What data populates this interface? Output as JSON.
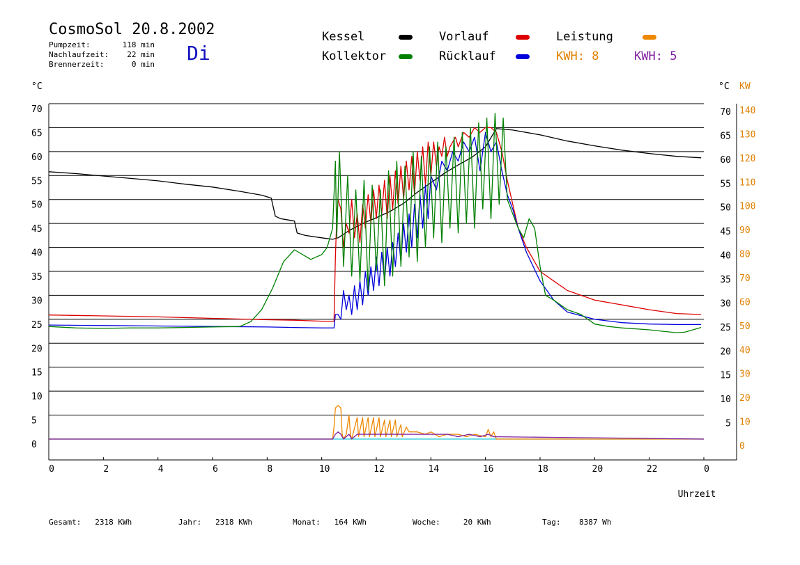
{
  "header": {
    "title": "CosmoSol 20.8.2002",
    "day": "Di",
    "info": [
      {
        "label": "Pumpzeit:",
        "value": "118 min"
      },
      {
        "label": "Nachlaufzeit:",
        "value": "22 min"
      },
      {
        "label": "Brennerzeit:",
        "value": "0 min"
      }
    ]
  },
  "legend": {
    "items": [
      {
        "label": "Kessel",
        "color": "#000000"
      },
      {
        "label": "Vorlauf",
        "color": "#dd0000"
      },
      {
        "label": "Leistung",
        "color": "#ee8800"
      },
      {
        "label": "Kollektor",
        "color": "#008000"
      },
      {
        "label": "Rücklauf",
        "color": "#0000dd"
      }
    ],
    "kwh1_label": "KWH:",
    "kwh1_value": "8",
    "kwh1_color": "#e08000",
    "kwh2_label": "KWH:",
    "kwh2_value": "5",
    "kwh2_color": "#8020a0"
  },
  "footer": [
    {
      "label": "Gesamt:",
      "value": "2318 KWh"
    },
    {
      "label": "Jahr:",
      "value": "2318 KWh"
    },
    {
      "label": "Monat:",
      "value": "164 KWh"
    },
    {
      "label": "Woche:",
      "value": "20 KWh"
    },
    {
      "label": "Tag:",
      "value": "8387 Wh"
    }
  ],
  "chart_data": {
    "type": "line",
    "xlabel": "Uhrzeit",
    "ylabel_left": "°C",
    "ylabel_right": "°C",
    "ylabel_right2": "KW",
    "x_ticks": [
      "0",
      "2",
      "4",
      "6",
      "8",
      "10",
      "12",
      "14",
      "16",
      "18",
      "20",
      "22",
      "0"
    ],
    "xlim": [
      0,
      24
    ],
    "ylim": [
      0,
      70
    ],
    "y_ticks_left": [
      "0",
      "5",
      "10",
      "15",
      "20",
      "25",
      "30",
      "35",
      "40",
      "45",
      "50",
      "55",
      "60",
      "65",
      "70"
    ],
    "y_ticks_right": [
      "5",
      "10",
      "15",
      "20",
      "25",
      "30",
      "35",
      "40",
      "45",
      "50",
      "55",
      "60",
      "65",
      "70"
    ],
    "y_ticks_kw": [
      "0",
      "10",
      "20",
      "30",
      "40",
      "50",
      "60",
      "70",
      "80",
      "90",
      "100",
      "110",
      "120",
      "130",
      "140"
    ],
    "grid": true,
    "series": [
      {
        "name": "Kessel",
        "color": "#000000",
        "x": [
          0,
          1,
          2,
          3,
          4,
          5,
          6,
          7,
          7.8,
          8.15,
          8.3,
          8.5,
          9,
          9.1,
          9.4,
          10,
          10.4,
          10.6,
          11,
          11.5,
          12,
          12.5,
          13,
          13.5,
          14,
          14.5,
          15,
          15.5,
          16,
          16.4,
          17,
          18,
          19,
          20,
          21,
          22,
          23,
          23.9
        ],
        "y": [
          55.8,
          55.4,
          54.9,
          54.4,
          53.9,
          53.2,
          52.6,
          51.7,
          50.9,
          50.3,
          46.5,
          46,
          45.5,
          43,
          42.5,
          42,
          41.7,
          42,
          43.5,
          45,
          46.2,
          47.5,
          49.2,
          51.5,
          53.5,
          55.5,
          57.2,
          58.8,
          61,
          64.8,
          64.5,
          63.5,
          62.2,
          61.2,
          60.3,
          59.6,
          59,
          58.7
        ]
      },
      {
        "name": "Vorlauf",
        "color": "#dd0000",
        "x": [
          0,
          2,
          4,
          6,
          8,
          9,
          10,
          10.45,
          10.5,
          10.55,
          10.6,
          10.7,
          10.8,
          10.9,
          11,
          11.1,
          11.2,
          11.3,
          11.4,
          11.5,
          11.6,
          11.7,
          11.8,
          11.9,
          12,
          12.1,
          12.2,
          12.3,
          12.4,
          12.5,
          12.6,
          12.7,
          12.8,
          12.9,
          13,
          13.1,
          13.2,
          13.3,
          13.4,
          13.5,
          13.6,
          13.7,
          13.8,
          13.9,
          14,
          14.1,
          14.2,
          14.3,
          14.4,
          14.5,
          14.6,
          14.7,
          14.8,
          14.9,
          15,
          15.2,
          15.4,
          15.6,
          15.8,
          16,
          16.2,
          16.4,
          16.6,
          16.8,
          17,
          17.2,
          17.5,
          18,
          18.5,
          19,
          20,
          21,
          22,
          23,
          23.9
        ],
        "y": [
          25.9,
          25.7,
          25.5,
          25.2,
          24.9,
          24.8,
          24.6,
          24.6,
          38,
          46,
          50,
          48,
          40,
          45,
          43,
          50,
          42,
          47,
          41,
          49,
          44,
          51,
          45,
          52,
          46,
          53,
          47,
          54,
          46,
          55,
          48,
          56,
          49,
          57,
          50,
          58,
          52,
          59,
          51,
          60,
          54,
          61,
          53,
          62,
          55,
          62,
          57,
          61,
          59,
          63,
          59,
          61,
          62,
          63,
          61,
          64,
          63,
          65,
          64,
          65,
          65,
          64,
          60,
          54,
          49,
          44,
          40,
          35,
          33,
          31,
          29,
          28,
          27,
          26.2,
          26
        ]
      },
      {
        "name": "Rücklauf",
        "color": "#0000dd",
        "x": [
          0,
          2,
          4,
          6,
          8,
          9,
          10,
          10.45,
          10.5,
          10.6,
          10.7,
          10.8,
          10.9,
          11,
          11.1,
          11.2,
          11.3,
          11.4,
          11.5,
          11.6,
          11.7,
          11.8,
          11.9,
          12,
          12.1,
          12.2,
          12.3,
          12.4,
          12.5,
          12.6,
          12.7,
          12.8,
          12.9,
          13,
          13.1,
          13.2,
          13.3,
          13.4,
          13.5,
          13.6,
          13.7,
          13.8,
          13.9,
          14,
          14.2,
          14.4,
          14.6,
          14.8,
          15,
          15.2,
          15.4,
          15.6,
          15.8,
          16,
          16.2,
          16.4,
          16.6,
          16.8,
          17,
          17.2,
          17.5,
          18,
          18.5,
          19,
          20,
          21,
          22,
          23,
          23.9
        ],
        "y": [
          23.8,
          23.7,
          23.6,
          23.5,
          23.4,
          23.3,
          23.2,
          23.2,
          26,
          26,
          25,
          31,
          27,
          30,
          26,
          32,
          27,
          33,
          28,
          35,
          30,
          36,
          31,
          38,
          32,
          39,
          33,
          40,
          34,
          41,
          36,
          43,
          37,
          45,
          39,
          47,
          40,
          49,
          42,
          51,
          44,
          53,
          46,
          55,
          52,
          58,
          56,
          60,
          58,
          62,
          60,
          63,
          56,
          64,
          60,
          62,
          56,
          51,
          48,
          44,
          39,
          33,
          29,
          26.5,
          25,
          24.3,
          24,
          23.9,
          23.9
        ]
      },
      {
        "name": "Kollektor",
        "color": "#008000",
        "x": [
          0,
          1,
          2,
          3,
          4,
          5,
          6,
          7,
          7.4,
          7.8,
          8.2,
          8.6,
          9,
          9.3,
          9.6,
          10,
          10.2,
          10.4,
          10.5,
          10.55,
          10.65,
          10.8,
          10.95,
          11.1,
          11.25,
          11.4,
          11.55,
          11.7,
          11.85,
          12,
          12.15,
          12.3,
          12.45,
          12.6,
          12.75,
          12.9,
          13.05,
          13.2,
          13.35,
          13.5,
          13.65,
          13.8,
          13.95,
          14.1,
          14.25,
          14.4,
          14.55,
          14.7,
          14.85,
          15,
          15.15,
          15.3,
          15.45,
          15.6,
          15.75,
          15.9,
          16.05,
          16.2,
          16.35,
          16.5,
          16.65,
          16.8,
          17,
          17.2,
          17.4,
          17.6,
          17.8,
          18,
          18.2,
          18.5,
          19,
          19.5,
          20,
          20.5,
          21,
          21.5,
          22,
          22.5,
          23,
          23.3,
          23.6,
          23.9
        ],
        "y": [
          23.5,
          23.2,
          23.1,
          23.2,
          23.2,
          23.3,
          23.4,
          23.5,
          24.5,
          27,
          31.5,
          37,
          39.5,
          38.5,
          37.5,
          38.5,
          40,
          44,
          58,
          42,
          60,
          36,
          55,
          34,
          52,
          33,
          54,
          31,
          53,
          35,
          52,
          32,
          56,
          34,
          58,
          36,
          57,
          38,
          60,
          37,
          59,
          40,
          61,
          42,
          62,
          41,
          61,
          44,
          63,
          43,
          64,
          45,
          65,
          44,
          66,
          48,
          67,
          46,
          68,
          49,
          67,
          50,
          47,
          44,
          42,
          46,
          44,
          36,
          30,
          29,
          27,
          26,
          24,
          23.5,
          23.2,
          23,
          22.8,
          22.5,
          22.2,
          22.3,
          22.8,
          23.3
        ]
      },
      {
        "name": "Leistung",
        "color": "#ee8800",
        "unit": "KW",
        "x": [
          0,
          10.4,
          10.45,
          10.5,
          10.6,
          10.7,
          10.75,
          10.8,
          10.9,
          11,
          11.05,
          11.1,
          11.3,
          11.35,
          11.5,
          11.55,
          11.7,
          11.75,
          11.9,
          11.95,
          12.1,
          12.15,
          12.3,
          12.35,
          12.5,
          12.55,
          12.7,
          12.75,
          12.9,
          12.95,
          13.1,
          13.2,
          13.5,
          13.8,
          14,
          14.3,
          14.6,
          15,
          15.3,
          15.6,
          16,
          16.1,
          16.2,
          16.3,
          16.4,
          24
        ],
        "y": [
          0,
          0,
          5,
          13,
          14,
          13,
          2,
          0,
          2,
          10,
          2,
          0,
          9,
          1,
          9,
          1,
          9,
          1,
          9,
          1,
          9,
          1,
          8,
          1,
          8,
          1,
          8,
          1,
          6,
          1,
          5,
          3,
          3,
          2,
          3,
          1,
          2,
          2,
          1,
          2,
          1,
          4,
          1,
          3,
          0,
          0
        ]
      },
      {
        "name": "Leistung2",
        "color": "#8020a0",
        "unit": "KW",
        "x": [
          0,
          10.4,
          10.5,
          10.6,
          10.7,
          10.8,
          11,
          11.1,
          11.3,
          11.5,
          11.7,
          11.9,
          12.1,
          12.3,
          12.5,
          12.7,
          12.9,
          13.1,
          13.4,
          13.8,
          14.2,
          14.6,
          15,
          15.4,
          15.8,
          16.1,
          16.3,
          24
        ],
        "y": [
          0,
          0,
          2,
          3,
          2,
          0,
          2,
          0,
          2,
          2,
          2,
          2,
          2,
          2,
          2,
          2,
          2,
          2,
          2,
          2,
          2,
          2,
          1,
          2,
          1,
          2,
          1,
          0
        ]
      }
    ]
  }
}
